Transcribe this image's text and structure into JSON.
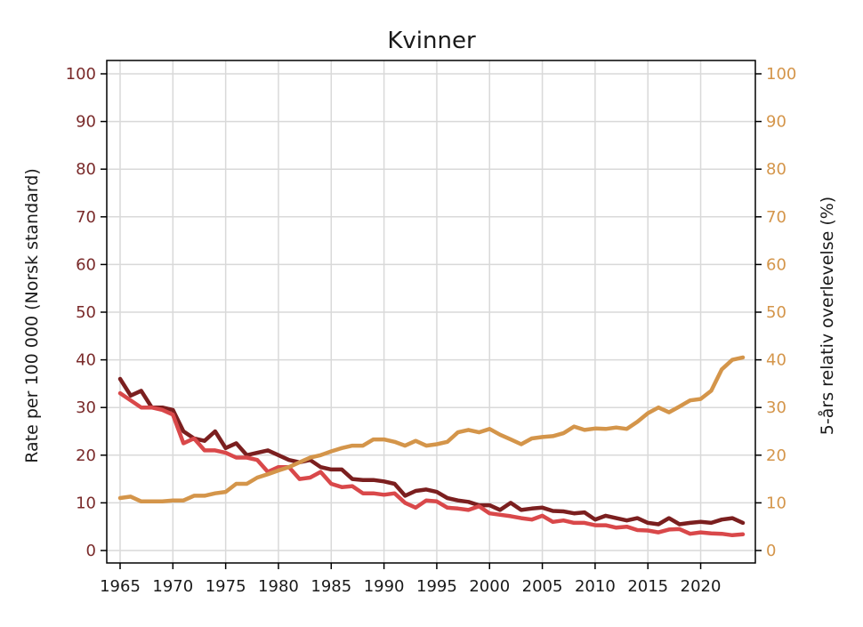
{
  "chart_data": {
    "type": "line",
    "title": "Kvinner",
    "ylabel_left": "Rate per 100 000 (Norsk standard)",
    "ylabel_right": "5-års relativ overlevelse (%)",
    "xlim": [
      1965,
      2024
    ],
    "ylim_left": [
      0,
      100
    ],
    "ylim_right": [
      0,
      100
    ],
    "x_ticks": [
      1965,
      1970,
      1975,
      1980,
      1985,
      1990,
      1995,
      2000,
      2005,
      2010,
      2015,
      2020
    ],
    "y_ticks": [
      0,
      10,
      20,
      30,
      40,
      50,
      60,
      70,
      80,
      90,
      100
    ],
    "grid": true,
    "colors": {
      "left_axis": "#7a2b2b",
      "right_axis": "#d4954a"
    },
    "x": [
      1965,
      1966,
      1967,
      1968,
      1969,
      1970,
      1971,
      1972,
      1973,
      1974,
      1975,
      1976,
      1977,
      1978,
      1979,
      1980,
      1981,
      1982,
      1983,
      1984,
      1985,
      1986,
      1987,
      1988,
      1989,
      1990,
      1991,
      1992,
      1993,
      1994,
      1995,
      1996,
      1997,
      1998,
      1999,
      2000,
      2001,
      2002,
      2003,
      2004,
      2005,
      2006,
      2007,
      2008,
      2009,
      2010,
      2011,
      2012,
      2013,
      2014,
      2015,
      2016,
      2017,
      2018,
      2019,
      2020,
      2021,
      2022,
      2023,
      2024
    ],
    "series": [
      {
        "axis": "left",
        "color": "#7b1f1f",
        "values": [
          36,
          32.5,
          33.5,
          30,
          30,
          29.5,
          25,
          23.5,
          23,
          25,
          21.5,
          22.5,
          20,
          20.5,
          21,
          20,
          19,
          18.5,
          19,
          17.5,
          17,
          17,
          15,
          14.8,
          14.8,
          14.5,
          14,
          11.5,
          12.5,
          12.8,
          12.3,
          11,
          10.5,
          10.2,
          9.5,
          9.5,
          8.5,
          10,
          8.5,
          8.8,
          9,
          8.3,
          8.2,
          7.8,
          8,
          6.5,
          7.3,
          6.8,
          6.3,
          6.8,
          5.8,
          5.5,
          6.8,
          5.5,
          5.8,
          6,
          5.8,
          6.5,
          6.8,
          5.8
        ]
      },
      {
        "axis": "left",
        "color": "#d9484a",
        "values": [
          33,
          31.5,
          30,
          30,
          29.5,
          28.5,
          22.5,
          23.5,
          21,
          21,
          20.5,
          19.5,
          19.5,
          19,
          16.5,
          17.5,
          17.5,
          15,
          15.3,
          16.5,
          14,
          13.3,
          13.5,
          12,
          12,
          11.7,
          12,
          10,
          9,
          10.5,
          10.3,
          9,
          8.8,
          8.5,
          9.3,
          7.8,
          7.5,
          7.2,
          6.8,
          6.5,
          7.3,
          6,
          6.3,
          5.8,
          5.8,
          5.3,
          5.3,
          4.8,
          5,
          4.3,
          4.2,
          3.8,
          4.4,
          4.5,
          3.5,
          3.8,
          3.6,
          3.5,
          3.2,
          3.4
        ]
      },
      {
        "axis": "right",
        "color": "#d4954a",
        "values": [
          11,
          11.3,
          10.3,
          10.3,
          10.3,
          10.5,
          10.5,
          11.5,
          11.5,
          12,
          12.3,
          14,
          14,
          15.3,
          16,
          16.8,
          17.5,
          18.5,
          19.5,
          20,
          20.8,
          21.5,
          22,
          22,
          23.3,
          23.3,
          22.8,
          22,
          23,
          22,
          22.3,
          22.8,
          24.8,
          25.3,
          24.8,
          25.5,
          24.3,
          23.3,
          22.3,
          23.5,
          23.8,
          24,
          24.6,
          26,
          25.3,
          25.6,
          25.5,
          25.8,
          25.5,
          27,
          28.8,
          30,
          29,
          30.2,
          31.5,
          31.8,
          33.5,
          38,
          40,
          40.5
        ]
      }
    ]
  }
}
